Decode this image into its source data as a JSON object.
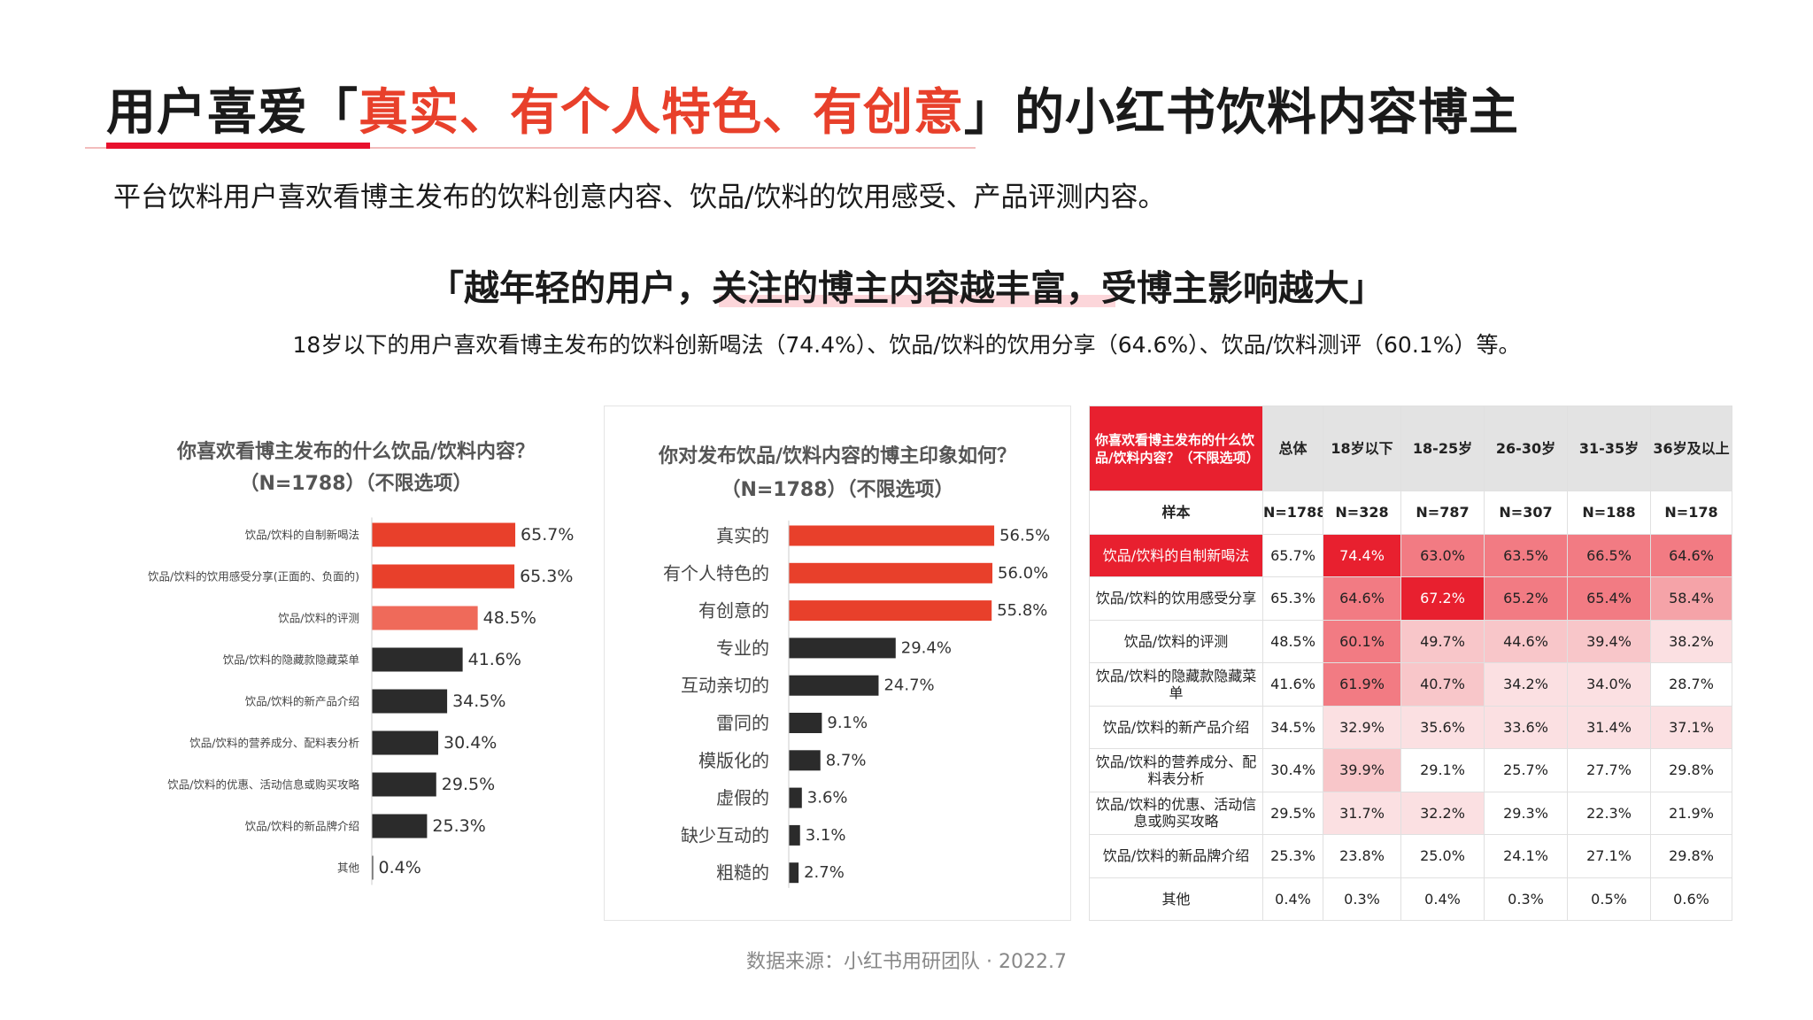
{
  "header": {
    "title_pre": "用户喜爱「",
    "title_accent": "真实、有个人特色、有创意",
    "title_post": "」的小红书饮料内容博主",
    "subtitle": "平台饮料用户喜欢看博主发布的饮料创意内容、饮品/饮料的饮用感受、产品评测内容。",
    "quote": "「越年轻的用户，关注的博主内容越丰富，受博主影响越大」",
    "quote_sub": "18岁以下的用户喜欢看博主发布的饮料创新喝法（74.4%）、饮品/饮料的饮用分享（64.6%）、饮品/饮料测评（60.1%）等。"
  },
  "colors": {
    "red": "#e8402b",
    "light_red": "#ef6a5a",
    "dark": "#2b2b2b",
    "accent_red": "#e8112d"
  },
  "chart_data": [
    {
      "type": "bar",
      "orientation": "horizontal",
      "title": "你喜欢看博主发布的什么饮品/饮料内容？",
      "subtitle": "（N=1788）（不限选项）",
      "categories": [
        "饮品/饮料的自制新喝法",
        "饮品/饮料的饮用感受分享(正面的、负面的)",
        "饮品/饮料的评测",
        "饮品/饮料的隐藏款隐藏菜单",
        "饮品/饮料的新产品介绍",
        "饮品/饮料的营养成分、配料表分析",
        "饮品/饮料的优惠、活动信息或购买攻略",
        "饮品/饮料的新品牌介绍",
        "其他"
      ],
      "values": [
        65.7,
        65.3,
        48.5,
        41.6,
        34.5,
        30.4,
        29.5,
        25.3,
        0.4
      ],
      "value_labels": [
        "65.7%",
        "65.3%",
        "48.5%",
        "41.6%",
        "34.5%",
        "30.4%",
        "29.5%",
        "25.3%",
        "0.4%"
      ],
      "bar_colors": [
        "#e8402b",
        "#e8402b",
        "#ef6a5a",
        "#2b2b2b",
        "#2b2b2b",
        "#2b2b2b",
        "#2b2b2b",
        "#2b2b2b",
        "#2b2b2b"
      ],
      "xlim": [
        0,
        75
      ]
    },
    {
      "type": "bar",
      "orientation": "horizontal",
      "title": "你对发布饮品/饮料内容的博主印象如何？",
      "subtitle": "（N=1788）（不限选项）",
      "categories": [
        "真实的",
        "有个人特色的",
        "有创意的",
        "专业的",
        "互动亲切的",
        "雷同的",
        "模版化的",
        "虚假的",
        "缺少互动的",
        "粗糙的"
      ],
      "values": [
        56.5,
        56.0,
        55.8,
        29.4,
        24.7,
        9.1,
        8.7,
        3.6,
        3.1,
        2.7
      ],
      "value_labels": [
        "56.5%",
        "56.0%",
        "55.8%",
        "29.4%",
        "24.7%",
        "9.1%",
        "8.7%",
        "3.6%",
        "3.1%",
        "2.7%"
      ],
      "bar_colors": [
        "#e8402b",
        "#e8402b",
        "#e8402b",
        "#2b2b2b",
        "#2b2b2b",
        "#2b2b2b",
        "#2b2b2b",
        "#2b2b2b",
        "#2b2b2b",
        "#2b2b2b"
      ],
      "xlim": [
        0,
        65
      ]
    },
    {
      "type": "table",
      "corner": "你喜欢看博主发布的什么饮品/饮料内容？（不限选项）",
      "columns": [
        "总体",
        "18岁以下",
        "18-25岁",
        "26-30岁",
        "31-35岁",
        "36岁及以上"
      ],
      "sample_label": "样本",
      "samples": [
        "N=1788",
        "N=328",
        "N=787",
        "N=307",
        "N=188",
        "N=178"
      ],
      "rows": [
        {
          "label": "饮品/饮料的自制新喝法",
          "values": [
            "65.7%",
            "74.4%",
            "63.0%",
            "63.5%",
            "66.5%",
            "64.6%"
          ]
        },
        {
          "label": "饮品/饮料的饮用感受分享",
          "values": [
            "65.3%",
            "64.6%",
            "67.2%",
            "65.2%",
            "65.4%",
            "58.4%"
          ]
        },
        {
          "label": "饮品/饮料的评测",
          "values": [
            "48.5%",
            "60.1%",
            "49.7%",
            "44.6%",
            "39.4%",
            "38.2%"
          ]
        },
        {
          "label": "饮品/饮料的隐藏款隐藏菜单",
          "values": [
            "41.6%",
            "61.9%",
            "40.7%",
            "34.2%",
            "34.0%",
            "28.7%"
          ]
        },
        {
          "label": "饮品/饮料的新产品介绍",
          "values": [
            "34.5%",
            "32.9%",
            "35.6%",
            "33.6%",
            "31.4%",
            "37.1%"
          ]
        },
        {
          "label": "饮品/饮料的营养成分、配料表分析",
          "values": [
            "30.4%",
            "39.9%",
            "29.1%",
            "25.7%",
            "27.7%",
            "29.8%"
          ]
        },
        {
          "label": "饮品/饮料的优惠、活动信息或购买攻略",
          "values": [
            "29.5%",
            "31.7%",
            "32.2%",
            "29.3%",
            "22.3%",
            "21.9%"
          ]
        },
        {
          "label": "饮品/饮料的新品牌介绍",
          "values": [
            "25.3%",
            "23.8%",
            "25.0%",
            "24.1%",
            "27.1%",
            "29.8%"
          ]
        },
        {
          "label": "其他",
          "values": [
            "0.4%",
            "0.3%",
            "0.4%",
            "0.3%",
            "0.5%",
            "0.6%"
          ]
        }
      ]
    }
  ],
  "footer": {
    "source": "数据来源：小红书用研团队 · 2022.7"
  }
}
